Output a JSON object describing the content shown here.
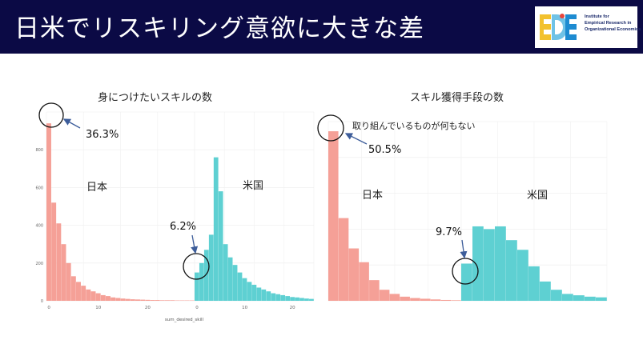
{
  "slide": {
    "title": "日米でリスキリング意欲に大きな差",
    "colors": {
      "header_bg": "#0b0a45",
      "japan": "#f5a097",
      "usa": "#5ed0d2"
    }
  },
  "logo": {
    "letters": "E D E",
    "text_lines": [
      "Institute for",
      "Empirical Research in",
      "Organizational Economics"
    ]
  },
  "chart_data": [
    {
      "type": "bar",
      "title": "身につけたいスキルの数",
      "xlabel": "sum_desired_skill",
      "ylabel": "",
      "grid": true,
      "panels": [
        {
          "name": "日本",
          "x_ticks": [
            "0",
            "10",
            "20"
          ],
          "x": [
            0,
            1,
            2,
            3,
            4,
            5,
            6,
            7,
            8,
            9,
            10,
            11,
            12,
            13,
            14,
            15,
            16,
            17,
            18,
            19,
            20,
            21,
            22,
            23,
            24,
            25,
            26,
            27,
            28,
            29
          ],
          "values": [
            940,
            520,
            410,
            300,
            200,
            130,
            100,
            80,
            60,
            50,
            40,
            30,
            25,
            18,
            15,
            12,
            10,
            8,
            7,
            6,
            5,
            4,
            4,
            3,
            3,
            3,
            2,
            2,
            2,
            2
          ]
        },
        {
          "name": "米国",
          "x_ticks": [
            "0",
            "10",
            "20"
          ],
          "x": [
            0,
            1,
            2,
            3,
            4,
            5,
            6,
            7,
            8,
            9,
            10,
            11,
            12,
            13,
            14,
            15,
            16,
            17,
            18,
            19,
            20,
            21,
            22,
            23,
            24
          ],
          "values": [
            150,
            200,
            270,
            350,
            760,
            580,
            300,
            230,
            190,
            150,
            120,
            100,
            85,
            70,
            60,
            50,
            40,
            35,
            30,
            25,
            20,
            18,
            15,
            12,
            10
          ]
        }
      ],
      "y_ticks": [
        "0",
        "200",
        "400",
        "600",
        "800"
      ],
      "ylim": [
        0,
        1000
      ],
      "annotations": [
        {
          "text": "36.3%"
        },
        {
          "text": "6.2%"
        }
      ]
    },
    {
      "type": "bar",
      "title": "スキル獲得手段の数",
      "xlabel": "",
      "ylabel": "",
      "grid": true,
      "panels": [
        {
          "name": "日本",
          "x": [
            0,
            1,
            2,
            3,
            4,
            5,
            6,
            7,
            8,
            9,
            10,
            11,
            12
          ],
          "values": [
            1230,
            600,
            380,
            280,
            150,
            80,
            50,
            30,
            20,
            15,
            10,
            6,
            4
          ]
        },
        {
          "name": "米国",
          "x": [
            0,
            1,
            2,
            3,
            4,
            5,
            6,
            7,
            8,
            9,
            10,
            11,
            12
          ],
          "values": [
            270,
            540,
            520,
            540,
            440,
            370,
            250,
            140,
            80,
            50,
            40,
            30,
            25
          ]
        }
      ],
      "ylim": [
        0,
        1300
      ],
      "annotations": [
        {
          "text": "取り組んでいるものが何もない"
        },
        {
          "text": "50.5%"
        },
        {
          "text": "9.7%"
        }
      ]
    }
  ]
}
